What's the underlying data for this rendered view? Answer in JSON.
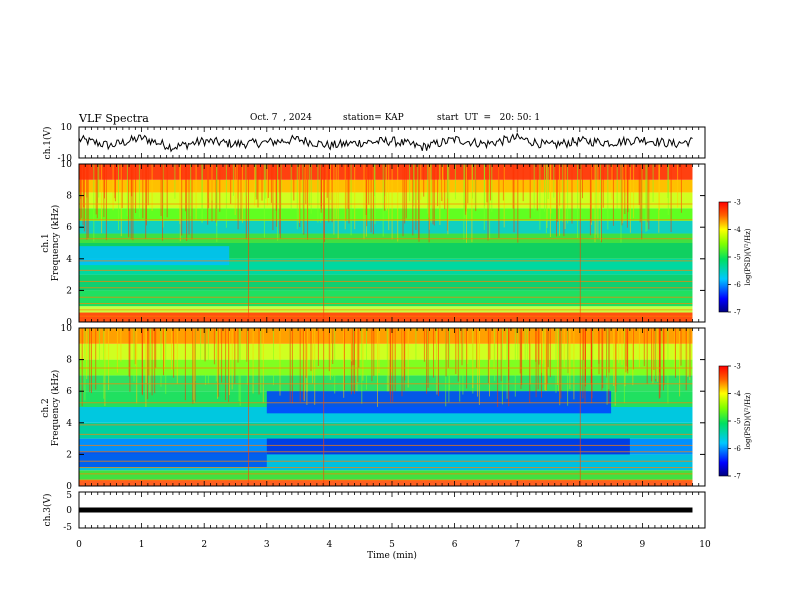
{
  "header": {
    "title": "VLF Spectra",
    "date": "Oct. 7  , 2024",
    "station": "station= KAP",
    "start": "start  UT  =   20: 50: 1"
  },
  "colorbar_label": "log(PSD)(V²/Hz)",
  "chart_data": [
    {
      "type": "line",
      "name": "ch1-waveform",
      "ylabel": "ch.1(V)",
      "ylim": [
        -10,
        10
      ],
      "yticks": [
        "10",
        "-10"
      ],
      "x": [
        0,
        0.5,
        1,
        1.5,
        2,
        2.5,
        3,
        3.5,
        4,
        4.5,
        5,
        5.5,
        6,
        6.5,
        7,
        7.5,
        8,
        8.5,
        9,
        9.5,
        9.8
      ],
      "y": [
        2,
        -2,
        3,
        -3,
        1,
        -1,
        0,
        2,
        -2,
        0,
        1,
        -3,
        2,
        -1,
        3,
        -2,
        1,
        0,
        2,
        -1,
        1
      ]
    },
    {
      "type": "heatmap",
      "name": "ch1-spectrogram",
      "ylabel_top": "ch.1",
      "ylabel": "Frequency  (kHz)",
      "ylim": [
        0,
        10
      ],
      "yticks": [
        "0",
        "2",
        "4",
        "6",
        "8",
        "10"
      ],
      "colorbar": {
        "min": -7,
        "max": -3,
        "ticks": [
          "-3",
          "-4",
          "-5",
          "-6",
          "-7"
        ]
      }
    },
    {
      "type": "heatmap",
      "name": "ch2-spectrogram",
      "ylabel_top": "ch.2",
      "ylabel": "Frequency  (kHz)",
      "ylim": [
        0,
        10
      ],
      "yticks": [
        "0",
        "2",
        "4",
        "6",
        "8",
        "10"
      ],
      "colorbar": {
        "min": -7,
        "max": -3,
        "ticks": [
          "-3",
          "-4",
          "-5",
          "-6",
          "-7"
        ]
      }
    },
    {
      "type": "line",
      "name": "ch3-waveform",
      "ylabel": "ch.3(V)",
      "ylim": [
        -5,
        5
      ],
      "yticks": [
        "5",
        "0",
        "-5"
      ],
      "x": [
        0,
        9.8
      ],
      "y": [
        0,
        0
      ]
    }
  ],
  "time_axis": {
    "xlabel": "Time  (min)",
    "xlim": [
      0,
      10
    ],
    "xticks": [
      "0",
      "1",
      "2",
      "3",
      "4",
      "5",
      "6",
      "7",
      "8",
      "9",
      "10"
    ],
    "data_end": 9.8
  }
}
